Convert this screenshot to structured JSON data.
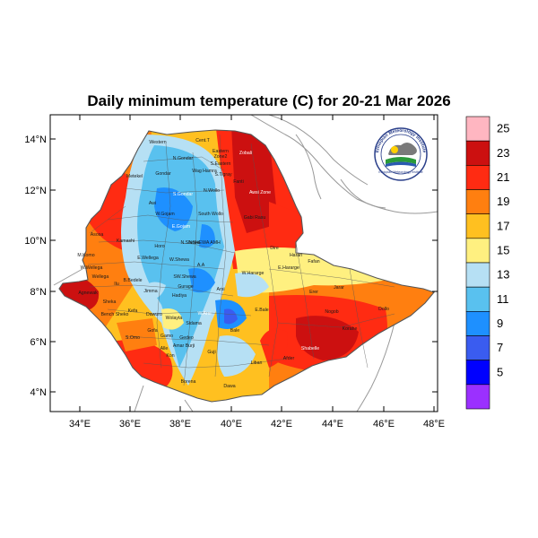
{
  "title": "Daily minimum temperature (C) for 20-21 Mar 2026",
  "axes": {
    "x_ticks": [
      "34°E",
      "36°E",
      "38°E",
      "40°E",
      "42°E",
      "44°E",
      "46°E",
      "48°E"
    ],
    "y_ticks": [
      "14°N",
      "12°N",
      "10°N",
      "8°N",
      "6°N",
      "4°N"
    ]
  },
  "colorbar": {
    "labels": [
      "25",
      "23",
      "21",
      "19",
      "17",
      "15",
      "13",
      "11",
      "9",
      "7",
      "5"
    ],
    "colors": [
      "#ffb6c1",
      "#cc1010",
      "#ff2b12",
      "#ff7f10",
      "#ffc020",
      "#fff080",
      "#b6e0f4",
      "#59c1ef",
      "#1e90ff",
      "#3a5cf0",
      "#0000ff",
      "#9b30ff"
    ]
  },
  "logo": {
    "arc_text": "Ethiopian Meteorology Institute",
    "sub_text": "Ethiopian Meteorology Institute"
  },
  "regions": [
    {
      "name": "Western",
      "fill": "#b6e0f4"
    },
    {
      "name": "Cent.T",
      "fill": "#59c1ef"
    },
    {
      "name": "Eastern",
      "fill": "#59c1ef"
    },
    {
      "name": "Zone2",
      "fill": "#59c1ef"
    },
    {
      "name": "Zobali",
      "fill": "#cc1010"
    },
    {
      "name": "N.Gondar",
      "fill": "#59c1ef"
    },
    {
      "name": "S.Eastern",
      "fill": "#59c1ef"
    },
    {
      "name": "Gondar",
      "fill": "#b6e0f4"
    },
    {
      "name": "Wag Hamra",
      "fill": "#59c1ef"
    },
    {
      "name": "S.Tigray",
      "fill": "#59c1ef"
    },
    {
      "name": "Metekel",
      "fill": "#ff2b12"
    },
    {
      "name": "S.Gondar",
      "fill": "#1e90ff"
    },
    {
      "name": "N.Wollo",
      "fill": "#59c1ef"
    },
    {
      "name": "Fanti",
      "fill": "#ff2b12"
    },
    {
      "name": "Awsi Zone",
      "fill": "#cc1010"
    },
    {
      "name": "Awi",
      "fill": "#59c1ef"
    },
    {
      "name": "W.Gojam",
      "fill": "#59c1ef"
    },
    {
      "name": "South Wollo",
      "fill": "#59c1ef"
    },
    {
      "name": "Gabi Rasu",
      "fill": "#ff7f10"
    },
    {
      "name": "Asosa",
      "fill": "#ff2b12"
    },
    {
      "name": "E.Gojam",
      "fill": "#1e90ff"
    },
    {
      "name": "Kamashi",
      "fill": "#ff7f10"
    },
    {
      "name": "Horo",
      "fill": "#59c1ef"
    },
    {
      "name": "N.Shewa",
      "fill": "#59c1ef"
    },
    {
      "name": "NSHEWA",
      "fill": "#59c1ef"
    },
    {
      "name": "AMH",
      "fill": "#59c1ef"
    },
    {
      "name": "Dire",
      "fill": "#ff7f10"
    },
    {
      "name": "Harari",
      "fill": "#ffc020"
    },
    {
      "name": "Fafan",
      "fill": "#ffc020"
    },
    {
      "name": "M.Komo",
      "fill": "#ffc020"
    },
    {
      "name": "W.Wellega",
      "fill": "#ffc020"
    },
    {
      "name": "E.Wellega",
      "fill": "#b6e0f4"
    },
    {
      "name": "W.Shewa",
      "fill": "#59c1ef"
    },
    {
      "name": "A.A",
      "fill": "#59c1ef"
    },
    {
      "name": "W.Hararge",
      "fill": "#fff080"
    },
    {
      "name": "E.Hararge",
      "fill": "#fff080"
    },
    {
      "name": "Wellega",
      "fill": "#ffc020"
    },
    {
      "name": "B.Bedele",
      "fill": "#59c1ef"
    },
    {
      "name": "SW.Shewa",
      "fill": "#59c1ef"
    },
    {
      "name": "Ilu",
      "fill": "#ffc020"
    },
    {
      "name": "Jimma",
      "fill": "#59c1ef"
    },
    {
      "name": "Gurage",
      "fill": "#59c1ef"
    },
    {
      "name": "Arsi",
      "fill": "#59c1ef"
    },
    {
      "name": "Erer",
      "fill": "#ff7f10"
    },
    {
      "name": "Jarar",
      "fill": "#ff7f10"
    },
    {
      "name": "Agnewak",
      "fill": "#ff2b12"
    },
    {
      "name": "Sheka",
      "fill": "#ffc020"
    },
    {
      "name": "Hadiya",
      "fill": "#59c1ef"
    },
    {
      "name": "Kefa",
      "fill": "#b6e0f4"
    },
    {
      "name": "Bench Sheko",
      "fill": "#ffc020"
    },
    {
      "name": "Dawuro",
      "fill": "#b6e0f4"
    },
    {
      "name": "Wolayta",
      "fill": "#b6e0f4"
    },
    {
      "name": "W.Arsi",
      "fill": "#1e90ff"
    },
    {
      "name": "Nogob",
      "fill": "#ff7f10"
    },
    {
      "name": "Dollo",
      "fill": "#ff7f10"
    },
    {
      "name": "E.Bale",
      "fill": "#b6e0f4"
    },
    {
      "name": "Gofa",
      "fill": "#ffc020"
    },
    {
      "name": "Gamo",
      "fill": "#ffc020"
    },
    {
      "name": "Sidama",
      "fill": "#b6e0f4"
    },
    {
      "name": "Korahe",
      "fill": "#ff2b12"
    },
    {
      "name": "Bale",
      "fill": "#b6e0f4"
    },
    {
      "name": "S.Omo",
      "fill": "#ff7f10"
    },
    {
      "name": "Gedeo",
      "fill": "#59c1ef"
    },
    {
      "name": "Amar Burji",
      "fill": "#ffc020"
    },
    {
      "name": "Alle",
      "fill": "#ffc020"
    },
    {
      "name": "Kon",
      "fill": "#ffc020"
    },
    {
      "name": "Guji",
      "fill": "#b6e0f4"
    },
    {
      "name": "Liban",
      "fill": "#ff7f10"
    },
    {
      "name": "Afder",
      "fill": "#ff2b12"
    },
    {
      "name": "Shabelle",
      "fill": "#cc1010"
    },
    {
      "name": "Borena",
      "fill": "#ffc020"
    },
    {
      "name": "Dawa",
      "fill": "#ff7f10"
    }
  ]
}
